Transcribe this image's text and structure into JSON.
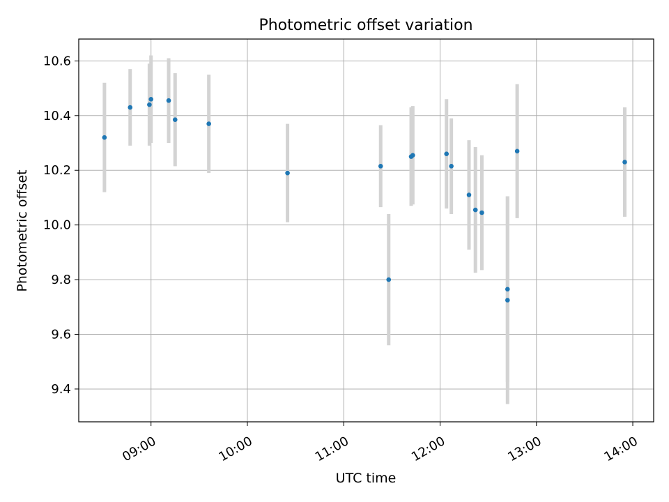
{
  "chart_data": {
    "type": "scatter",
    "title": "Photometric offset variation",
    "xlabel": "UTC time",
    "ylabel": "Photometric offset",
    "x_ticks": [
      "09:00",
      "10:00",
      "11:00",
      "12:00",
      "13:00",
      "14:00"
    ],
    "y_ticks": [
      "9.4",
      "9.6",
      "9.8",
      "10.0",
      "10.2",
      "10.4",
      "10.6"
    ],
    "xlim": [
      "08:15",
      "14:13"
    ],
    "ylim": [
      9.28,
      10.68
    ],
    "grid": true,
    "colors": {
      "points": "#1f77b4",
      "errorbars": "#d3d3d3",
      "grid": "#b0b0b0"
    },
    "points": [
      {
        "x": "08:31",
        "y": 10.32,
        "err": 0.2
      },
      {
        "x": "08:47",
        "y": 10.43,
        "err": 0.14
      },
      {
        "x": "08:59",
        "y": 10.44,
        "err": 0.15
      },
      {
        "x": "09:00",
        "y": 10.46,
        "err": 0.16
      },
      {
        "x": "09:11",
        "y": 10.455,
        "err": 0.155
      },
      {
        "x": "09:15",
        "y": 10.385,
        "err": 0.17
      },
      {
        "x": "09:36",
        "y": 10.37,
        "err": 0.18
      },
      {
        "x": "10:25",
        "y": 10.19,
        "err": 0.18
      },
      {
        "x": "11:23",
        "y": 10.215,
        "err": 0.15
      },
      {
        "x": "11:28",
        "y": 9.8,
        "err": 0.24
      },
      {
        "x": "11:42",
        "y": 10.25,
        "err": 0.18
      },
      {
        "x": "11:43",
        "y": 10.255,
        "err": 0.18
      },
      {
        "x": "12:04",
        "y": 10.26,
        "err": 0.2
      },
      {
        "x": "12:07",
        "y": 10.215,
        "err": 0.175
      },
      {
        "x": "12:18",
        "y": 10.11,
        "err": 0.2
      },
      {
        "x": "12:22",
        "y": 10.055,
        "err": 0.23
      },
      {
        "x": "12:26",
        "y": 10.045,
        "err": 0.21
      },
      {
        "x": "12:42",
        "y": 9.765,
        "err": 0.34
      },
      {
        "x": "12:42",
        "y": 9.725,
        "err": 0.38
      },
      {
        "x": "12:48",
        "y": 10.27,
        "err": 0.245
      },
      {
        "x": "13:55",
        "y": 10.23,
        "err": 0.2
      }
    ]
  }
}
